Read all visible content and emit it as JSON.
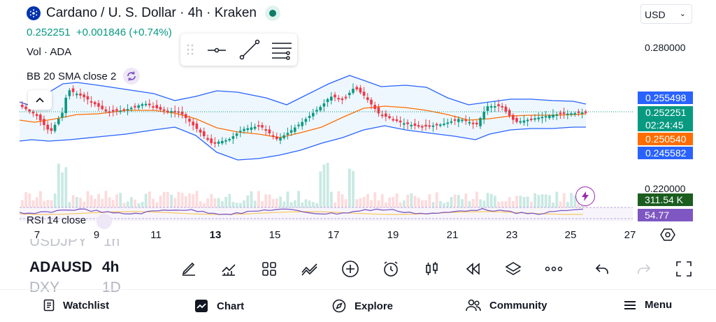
{
  "header": {
    "title": "Cardano / U. S. Dollar · 4h · Kraken",
    "price": "0.252251",
    "change": "+0.001846 (+0.74%)",
    "currency": "USD"
  },
  "indicators": {
    "volume": "Vol · ADA",
    "bb": "BB 20 SMA close 2",
    "rsi": "RSI 14 close"
  },
  "price_axis": {
    "labels": [
      "0.280000",
      "0.220000"
    ],
    "tags": {
      "bb_upper": "0.255498",
      "last_price": "0.252251",
      "countdown": "02:24:45",
      "bb_basis": "0.250540",
      "bb_lower": "0.245582",
      "volume": "311.54 K",
      "rsi": "54.77"
    }
  },
  "time_axis": {
    "labels": [
      "7",
      "9",
      "11",
      "13",
      "15",
      "17",
      "19",
      "21",
      "23",
      "25",
      "27"
    ],
    "bold_label": "13"
  },
  "symbols": {
    "prev": "USDJPY",
    "prev_interval": "1h",
    "current": "ADAUSD",
    "current_interval": "4h",
    "next": "DXY",
    "next_interval": "1D"
  },
  "nav": {
    "watchlist": "Watchlist",
    "chart": "Chart",
    "explore": "Explore",
    "community": "Community",
    "menu": "Menu"
  },
  "colors": {
    "up": "#089981",
    "down": "#f23645",
    "bb_band": "#2962ff",
    "bb_basis": "#ff6d00",
    "rsi": "#7e57c2",
    "last_price": "#089981"
  },
  "icons": {
    "toolbox": [
      "drag-handle-icon",
      "horizontal-line-icon",
      "trend-line-icon",
      "line-settings-icon"
    ],
    "toolbar": [
      "draw-icon",
      "indicators-icon",
      "layouts-icon",
      "compare-icon",
      "add-icon",
      "alert-icon",
      "candle-style-icon",
      "replay-icon",
      "layers-icon",
      "more-icon",
      "undo-icon",
      "redo-icon",
      "fullscreen-icon"
    ]
  }
}
